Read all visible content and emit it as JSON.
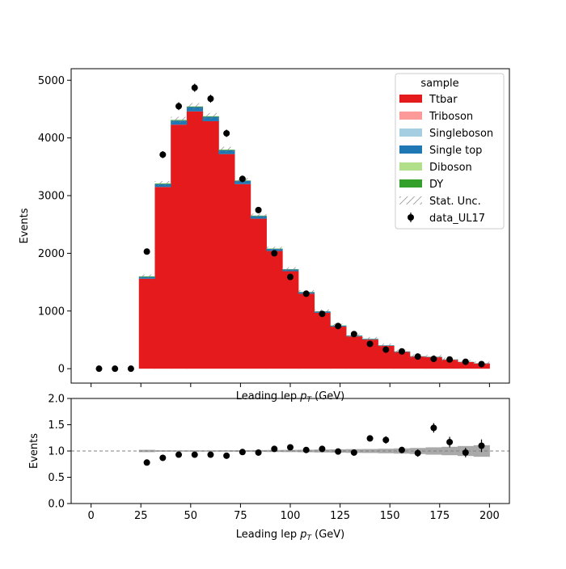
{
  "chart_data": [
    {
      "type": "bar",
      "stacked": true,
      "ylabel": "Events",
      "xlabel": "Leading lep",
      "xlabel_math": "p",
      "xlabel_sub": "T",
      "xlabel_unit": "(GeV)",
      "xlim": [
        -10,
        210
      ],
      "ylim": [
        -250,
        5200
      ],
      "xticks": [
        0,
        25,
        50,
        75,
        100,
        125,
        150,
        175,
        200
      ],
      "yticks": [
        0,
        1000,
        2000,
        3000,
        4000,
        5000
      ],
      "bin_edges": [
        24,
        32,
        40,
        48,
        56,
        64,
        72,
        80,
        88,
        96,
        104,
        112,
        120,
        128,
        136,
        144,
        152,
        160,
        168,
        176,
        184,
        192,
        200
      ],
      "legend": {
        "title": "sample",
        "position": "top-right",
        "entries": [
          "Ttbar",
          "Triboson",
          "Singleboson",
          "Single top",
          "Diboson",
          "DY",
          "Stat. Unc.",
          "data_UL17"
        ]
      },
      "colors": {
        "Ttbar": "#e41a1c",
        "Triboson": "#fb9a99",
        "Singleboson": "#a6cee3",
        "Single top": "#1f78b4",
        "Diboson": "#b2df8a",
        "DY": "#33a02c"
      },
      "series": [
        {
          "name": "Ttbar",
          "values": [
            1560,
            3150,
            4230,
            4460,
            4290,
            3720,
            3200,
            2600,
            2040,
            1690,
            1300,
            970,
            730,
            560,
            505,
            395,
            290,
            210,
            200,
            155,
            115,
            90
          ]
        },
        {
          "name": "Single top",
          "values": [
            30,
            50,
            70,
            75,
            75,
            65,
            55,
            45,
            35,
            30,
            25,
            20,
            15,
            12,
            10,
            8,
            7,
            5,
            5,
            4,
            3,
            3
          ]
        },
        {
          "name": "DY",
          "values": [
            10,
            10,
            10,
            10,
            10,
            10,
            8,
            8,
            6,
            5,
            5,
            4,
            4,
            3,
            3,
            2,
            2,
            2,
            2,
            1,
            1,
            1
          ]
        },
        {
          "name": "Diboson",
          "values": [
            2,
            3,
            3,
            3,
            3,
            3,
            2,
            2,
            2,
            2,
            1,
            1,
            1,
            1,
            1,
            1,
            1,
            1,
            1,
            0,
            0,
            0
          ]
        },
        {
          "name": "Singleboson",
          "values": [
            1,
            1,
            1,
            1,
            1,
            1,
            1,
            1,
            1,
            1,
            1,
            1,
            1,
            1,
            0,
            0,
            0,
            0,
            0,
            0,
            0,
            0
          ]
        },
        {
          "name": "Triboson",
          "values": [
            0,
            0,
            0,
            0,
            0,
            0,
            0,
            0,
            0,
            0,
            0,
            0,
            0,
            0,
            0,
            0,
            0,
            0,
            0,
            0,
            0,
            0
          ]
        }
      ],
      "stat_unc_rel": 0.012,
      "data": {
        "name": "data_UL17",
        "x": [
          4,
          12,
          20,
          28,
          36,
          44,
          52,
          60,
          68,
          76,
          84,
          92,
          100,
          108,
          116,
          124,
          132,
          140,
          148,
          156,
          164,
          172,
          180,
          188,
          196
        ],
        "y": [
          0,
          0,
          0,
          2030,
          3710,
          4550,
          4870,
          4680,
          4080,
          3290,
          2750,
          2000,
          1590,
          1300,
          950,
          740,
          600,
          430,
          330,
          300,
          210,
          170,
          160,
          120,
          80
        ]
      }
    },
    {
      "type": "scatter",
      "ylabel": "Events",
      "xlabel": "Leading lep",
      "xlabel_math": "p",
      "xlabel_sub": "T",
      "xlabel_unit": "(GeV)",
      "xlim": [
        -10,
        210
      ],
      "ylim": [
        0,
        2
      ],
      "xticks": [
        0,
        25,
        50,
        75,
        100,
        125,
        150,
        175,
        200
      ],
      "yticks": [
        0.0,
        0.5,
        1.0,
        1.5,
        2.0
      ],
      "reference_line": 1.0,
      "unc_band_rel": [
        0.022,
        0.014,
        0.013,
        0.013,
        0.013,
        0.014,
        0.015,
        0.017,
        0.019,
        0.021,
        0.024,
        0.028,
        0.032,
        0.036,
        0.038,
        0.043,
        0.05,
        0.058,
        0.07,
        0.08,
        0.095,
        0.11
      ],
      "points": {
        "x": [
          28,
          36,
          44,
          52,
          60,
          68,
          76,
          84,
          92,
          100,
          108,
          116,
          124,
          132,
          140,
          148,
          156,
          164,
          172,
          180,
          188,
          196
        ],
        "y": [
          0.78,
          0.87,
          0.93,
          0.93,
          0.93,
          0.91,
          0.98,
          0.97,
          1.04,
          1.07,
          1.02,
          1.04,
          0.99,
          0.97,
          1.24,
          1.21,
          1.02,
          0.96,
          1.44,
          1.17,
          0.97,
          1.1
        ],
        "yerr": [
          0.02,
          0.02,
          0.02,
          0.02,
          0.02,
          0.02,
          0.02,
          0.02,
          0.03,
          0.03,
          0.03,
          0.04,
          0.04,
          0.04,
          0.06,
          0.07,
          0.06,
          0.07,
          0.09,
          0.1,
          0.09,
          0.12
        ]
      }
    }
  ]
}
